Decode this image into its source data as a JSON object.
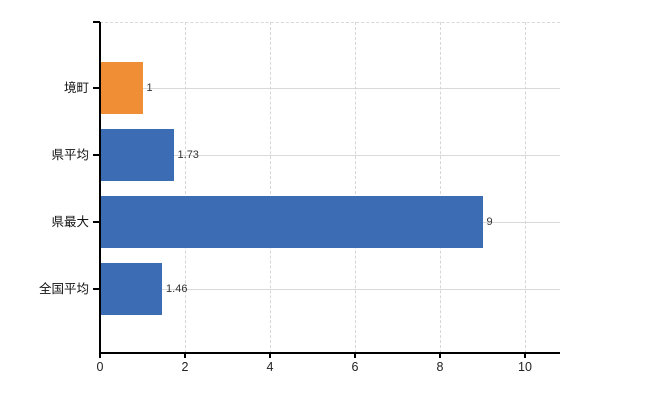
{
  "chart_data": {
    "type": "bar",
    "orientation": "horizontal",
    "title": "",
    "categories": [
      "境町",
      "県平均",
      "県最大",
      "全国平均"
    ],
    "values": [
      1,
      1.73,
      9,
      1.46
    ],
    "value_labels": [
      "1",
      "1.73",
      "9",
      "1.46"
    ],
    "bar_colors": [
      "#f08e35",
      "#3c6cb4",
      "#3c6cb4",
      "#3c6cb4"
    ],
    "x_ticks": [
      0,
      2,
      4,
      6,
      8,
      10
    ],
    "x_tick_labels": [
      "0",
      "2",
      "4",
      "6",
      "8",
      "10"
    ],
    "xlim": [
      0,
      10.8
    ],
    "xlabel": "",
    "ylabel": "",
    "grid": "vertical dashed at x ticks, horizontal at category centers",
    "legend": false
  },
  "colors": {
    "background": "#ffffff",
    "bar_orange": "#f08e35",
    "bar_blue": "#3c6cb4",
    "axis": "#000000",
    "gridline": "#d9d9d9",
    "value_label_text": "#333333",
    "category_label_text": "#111111",
    "tick_label_text": "#222222"
  }
}
